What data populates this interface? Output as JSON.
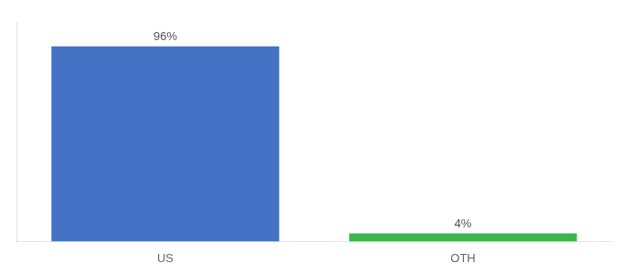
{
  "chart_data": {
    "type": "bar",
    "categories": [
      "US",
      "OTH"
    ],
    "values": [
      96,
      4
    ],
    "value_labels": [
      "96%",
      "4%"
    ],
    "data_labels": true,
    "colors": [
      "#4472c4",
      "#3cb54a"
    ],
    "ylim": [
      0,
      108
    ],
    "yticks": [],
    "grid": false,
    "tick_labels": "x"
  }
}
